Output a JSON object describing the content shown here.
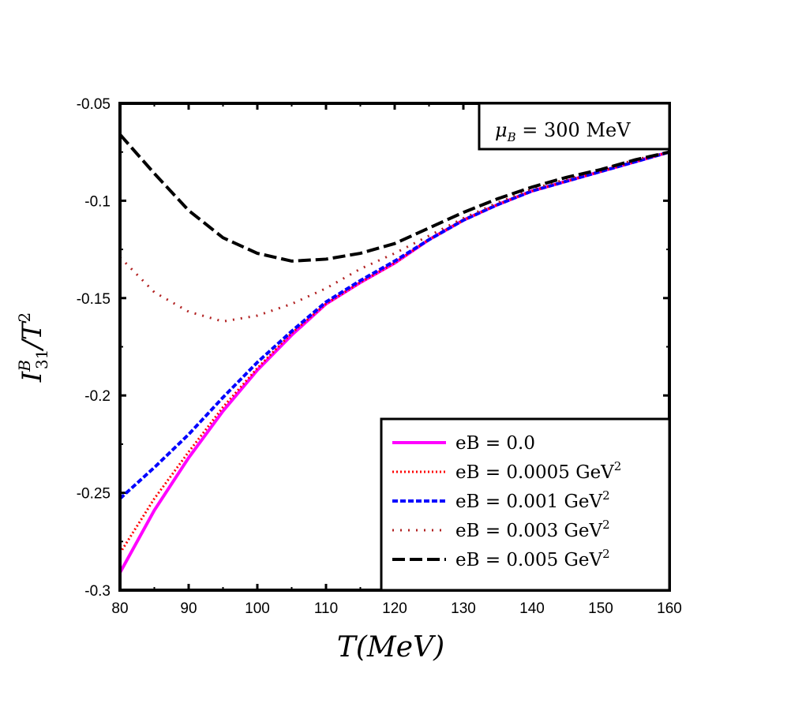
{
  "chart_data": {
    "type": "line",
    "xlabel": "T(MeV)",
    "ylabel": {
      "main": "I",
      "sub": "31",
      "sup": "B",
      "rest": "/T",
      "rest_sup": "2"
    },
    "xlim": [
      80,
      160
    ],
    "ylim": [
      -0.3,
      -0.05
    ],
    "xticks": [
      "80",
      "90",
      "100",
      "110",
      "120",
      "130",
      "140",
      "150",
      "160"
    ],
    "xtick_values": [
      80,
      90,
      100,
      110,
      120,
      130,
      140,
      150,
      160
    ],
    "yticks": [
      "-0.05",
      "-0.1",
      "-0.15",
      "-0.2",
      "-0.25",
      "-0.3"
    ],
    "ytick_values": [
      -0.05,
      -0.1,
      -0.15,
      -0.2,
      -0.25,
      -0.3
    ],
    "annotation": {
      "lhs": "μ",
      "sub": "B",
      "rhs": " = 300 MeV"
    },
    "legend_placement": "bottom-right",
    "grid": false,
    "x": [
      80,
      85,
      90,
      95,
      100,
      105,
      110,
      115,
      120,
      125,
      130,
      135,
      140,
      145,
      150,
      155,
      160
    ],
    "series": [
      {
        "name": "eB = 0.0",
        "unit": "",
        "color": "#ff00ff",
        "dash": "solid",
        "values": [
          -0.291,
          -0.259,
          -0.232,
          -0.208,
          -0.187,
          -0.169,
          -0.153,
          -0.142,
          -0.132,
          -0.12,
          -0.11,
          -0.102,
          -0.095,
          -0.09,
          -0.085,
          -0.08,
          -0.075
        ]
      },
      {
        "name": "eB = 0.0005 GeV",
        "unit": "2",
        "color": "#ff0000",
        "dash": "dotted",
        "values": [
          -0.281,
          -0.253,
          -0.229,
          -0.206,
          -0.186,
          -0.168,
          -0.153,
          -0.142,
          -0.132,
          -0.12,
          -0.11,
          -0.102,
          -0.095,
          -0.09,
          -0.085,
          -0.08,
          -0.075
        ]
      },
      {
        "name": "eB = 0.001 GeV",
        "unit": "2",
        "color": "#0000ff",
        "dash": "dashed",
        "values": [
          -0.253,
          -0.237,
          -0.22,
          -0.201,
          -0.183,
          -0.167,
          -0.152,
          -0.141,
          -0.131,
          -0.12,
          -0.11,
          -0.102,
          -0.095,
          -0.09,
          -0.085,
          -0.08,
          -0.075
        ]
      },
      {
        "name": "eB = 0.003 GeV",
        "unit": "2",
        "color": "#b22222",
        "dash": "sparse-dotted",
        "values": [
          -0.129,
          -0.147,
          -0.157,
          -0.162,
          -0.159,
          -0.153,
          -0.145,
          -0.135,
          -0.127,
          -0.118,
          -0.109,
          -0.101,
          -0.094,
          -0.089,
          -0.084,
          -0.079,
          -0.075
        ]
      },
      {
        "name": "eB = 0.005 GeV",
        "unit": "2",
        "color": "#000000",
        "dash": "long-dashed",
        "values": [
          -0.066,
          -0.086,
          -0.105,
          -0.119,
          -0.127,
          -0.131,
          -0.13,
          -0.127,
          -0.122,
          -0.114,
          -0.106,
          -0.099,
          -0.093,
          -0.088,
          -0.084,
          -0.079,
          -0.075
        ]
      }
    ]
  }
}
